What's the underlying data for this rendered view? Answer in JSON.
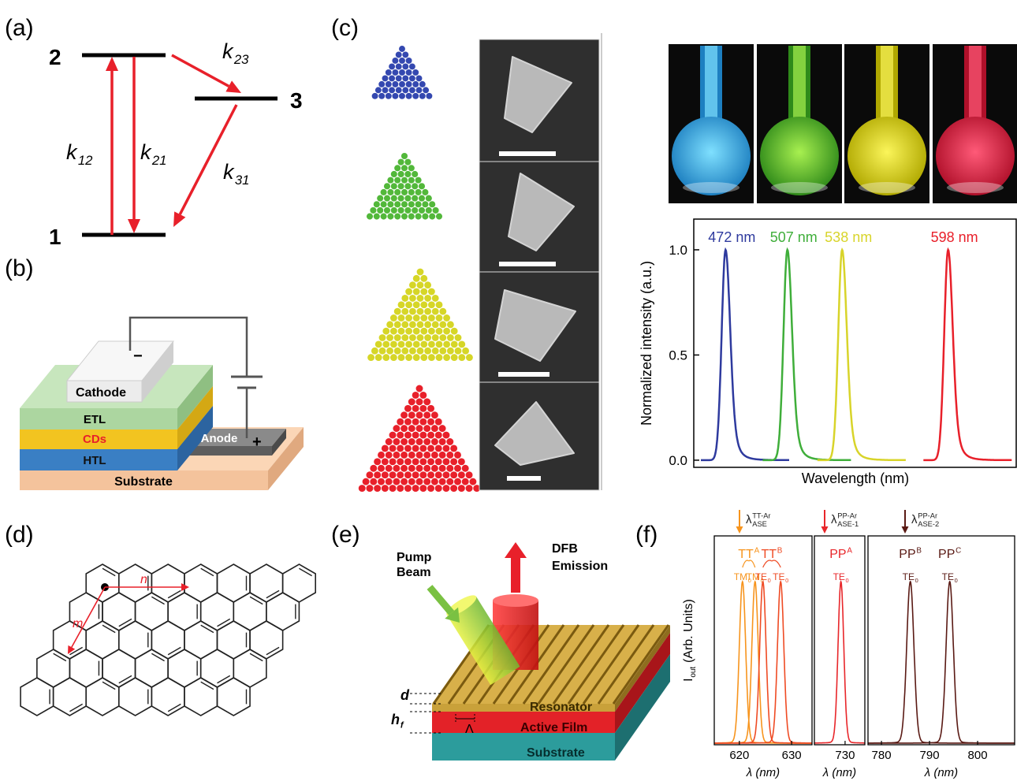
{
  "panels": {
    "a": {
      "label": "(a)",
      "levels": [
        "1",
        "2",
        "3"
      ],
      "rates": [
        {
          "base": "k",
          "sub": "12"
        },
        {
          "base": "k",
          "sub": "21"
        },
        {
          "base": "k",
          "sub": "23"
        },
        {
          "base": "k",
          "sub": "31"
        }
      ]
    },
    "b": {
      "label": "(b)",
      "layers": {
        "cathode": "Cathode",
        "etl": "ETL",
        "cds": "CDs",
        "htl": "HTL",
        "substrate": "Substrate",
        "anode": "Anode"
      },
      "minus": "−",
      "plus": "+"
    },
    "c": {
      "label": "(c)"
    },
    "d": {
      "label": "(d)",
      "vectors": {
        "n": "n",
        "m": "m"
      }
    },
    "e": {
      "label": "(e)",
      "pump": [
        "Pump",
        "Beam"
      ],
      "emission": [
        "DFB",
        "Emission"
      ],
      "layers": {
        "resonator": "Resonator",
        "film": "Active Film",
        "substrate": "Substrate"
      },
      "d": "d",
      "hf": {
        "base": "h",
        "sub": "f"
      },
      "period": "Λ"
    },
    "f": {
      "label": "(f)"
    }
  },
  "chart_data": [
    {
      "type": "line",
      "ylabel": "Normalized intensity (a.u.)",
      "xlabel": "Wavelength (nm)",
      "xlim": [
        454,
        637
      ],
      "ylim": [
        -0.034,
        1.146
      ],
      "yticks": [
        {
          "value": 0,
          "label": "0.0"
        },
        {
          "value": 0.5,
          "label": "0.5"
        },
        {
          "value": 1,
          "label": "1.0"
        }
      ],
      "series": [
        {
          "name": "472 nm",
          "color": "#2e3a9e",
          "peak": 472,
          "height": 1
        },
        {
          "name": "507 nm",
          "color": "#3fae3a",
          "peak": 507,
          "height": 1
        },
        {
          "name": "538 nm",
          "color": "#d8d42a",
          "peak": 538,
          "height": 1
        },
        {
          "name": "598 nm",
          "color": "#e8202a",
          "peak": 598,
          "height": 1
        }
      ]
    },
    {
      "type": "peaks",
      "ylabel": {
        "base": "I",
        "sub": "out",
        "rest": "(Arb. Units)"
      },
      "panels": [
        {
          "xlim": [
            615.2,
            633.9
          ],
          "xticks": [
            620,
            630
          ],
          "xlabel": "λ (nm)",
          "annotation": {
            "base": "λ",
            "sup": "TT-Ar",
            "sub": "ASE"
          },
          "groups": [
            {
              "name": {
                "base": "TT",
                "sup": "A"
              },
              "color": "#f7941d",
              "peaks": [
                {
                  "x": 620.6,
                  "label": {
                    "base": "TM",
                    "sub": "0"
                  }
                },
                {
                  "x": 623,
                  "label": {
                    "base": "TM",
                    "sub": "0"
                  }
                }
              ]
            },
            {
              "name": {
                "base": "TT",
                "sup": "B"
              },
              "color": "#ef4b24",
              "peaks": [
                {
                  "x": 624.5,
                  "label": {
                    "base": "TE",
                    "sub": "0"
                  }
                },
                {
                  "x": 627.9,
                  "label": {
                    "base": "TE",
                    "sub": "0"
                  }
                }
              ]
            }
          ]
        },
        {
          "xlim": [
            724.1,
            733.8
          ],
          "xticks": [
            730
          ],
          "xlabel": "λ (nm)",
          "annotation": {
            "base": "λ",
            "sup": "PP-Ar",
            "sub": "ASE-1"
          },
          "groups": [
            {
              "name": {
                "base": "PP",
                "sup": "A"
              },
              "color": "#e8262a",
              "peaks": [
                {
                  "x": 729.2,
                  "label": {
                    "base": "TE",
                    "sub": "0"
                  }
                }
              ]
            }
          ]
        },
        {
          "xlim": [
            777.2,
            807.7
          ],
          "xticks": [
            780,
            790,
            800
          ],
          "xlabel": "λ (nm)",
          "annotation": {
            "base": "λ",
            "sup": "PP-Ar",
            "sub": "ASE-2"
          },
          "groups": [
            {
              "name": {
                "base": "PP",
                "sup": "B"
              },
              "color": "#5a1a14",
              "peaks": [
                {
                  "x": 786,
                  "label": {
                    "base": "TE",
                    "sub": "0"
                  }
                }
              ]
            },
            {
              "name": {
                "base": "PP",
                "sup": "C"
              },
              "color": "#5a1a14",
              "peaks": [
                {
                  "x": 794.2,
                  "label": {
                    "base": "TE",
                    "sub": "0"
                  }
                }
              ]
            }
          ]
        }
      ]
    }
  ]
}
